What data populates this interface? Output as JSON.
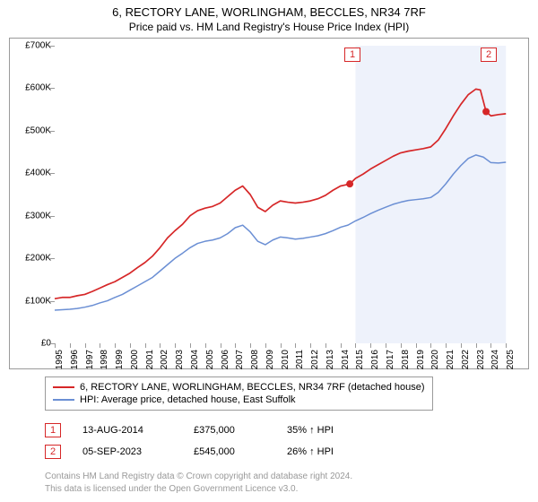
{
  "title_line1": "6, RECTORY LANE, WORLINGHAM, BECCLES, NR34 7RF",
  "title_line2": "Price paid vs. HM Land Registry's House Price Index (HPI)",
  "chart": {
    "type": "line",
    "background_color": "#ffffff",
    "plot_border_color": "#9a9a9a",
    "shaded_band": {
      "from_x": 2015,
      "to_x": 2025,
      "fill": "#eef2fb"
    },
    "y": {
      "min": 0,
      "max": 700000,
      "prefix": "£",
      "suffix": "K",
      "ticks": [
        0,
        100000,
        200000,
        300000,
        400000,
        500000,
        600000,
        700000
      ],
      "tick_labels": [
        "£0",
        "£100K",
        "£200K",
        "£300K",
        "£400K",
        "£500K",
        "£600K",
        "£700K"
      ],
      "label_fontsize": 10,
      "label_color": "#000000"
    },
    "x": {
      "min": 1995,
      "max": 2026,
      "ticks": [
        1995,
        1996,
        1997,
        1998,
        1999,
        2000,
        2001,
        2002,
        2003,
        2004,
        2005,
        2006,
        2007,
        2008,
        2009,
        2010,
        2011,
        2012,
        2013,
        2014,
        2015,
        2016,
        2017,
        2018,
        2019,
        2020,
        2021,
        2022,
        2023,
        2024,
        2025
      ],
      "label_fontsize": 10,
      "label_color": "#000000",
      "rotation_deg": -90
    },
    "series": [
      {
        "name": "price_paid",
        "label": "6, RECTORY LANE, WORLINGHAM, BECCLES, NR34 7RF (detached house)",
        "color": "#d62728",
        "line_width": 1.7,
        "data": [
          [
            1995,
            105000
          ],
          [
            1995.5,
            108000
          ],
          [
            1996,
            108000
          ],
          [
            1996.5,
            112000
          ],
          [
            1997,
            115000
          ],
          [
            1997.5,
            122000
          ],
          [
            1998,
            130000
          ],
          [
            1998.5,
            138000
          ],
          [
            1999,
            145000
          ],
          [
            1999.5,
            155000
          ],
          [
            2000,
            165000
          ],
          [
            2000.5,
            178000
          ],
          [
            2001,
            190000
          ],
          [
            2001.5,
            205000
          ],
          [
            2002,
            225000
          ],
          [
            2002.5,
            248000
          ],
          [
            2003,
            265000
          ],
          [
            2003.5,
            280000
          ],
          [
            2004,
            300000
          ],
          [
            2004.5,
            312000
          ],
          [
            2005,
            318000
          ],
          [
            2005.5,
            322000
          ],
          [
            2006,
            330000
          ],
          [
            2006.5,
            345000
          ],
          [
            2007,
            360000
          ],
          [
            2007.5,
            370000
          ],
          [
            2008,
            350000
          ],
          [
            2008.5,
            320000
          ],
          [
            2009,
            310000
          ],
          [
            2009.5,
            325000
          ],
          [
            2010,
            335000
          ],
          [
            2010.5,
            332000
          ],
          [
            2011,
            330000
          ],
          [
            2011.5,
            332000
          ],
          [
            2012,
            335000
          ],
          [
            2012.5,
            340000
          ],
          [
            2013,
            348000
          ],
          [
            2013.5,
            360000
          ],
          [
            2014,
            370000
          ],
          [
            2014.62,
            375000
          ],
          [
            2015,
            388000
          ],
          [
            2015.5,
            398000
          ],
          [
            2016,
            410000
          ],
          [
            2016.5,
            420000
          ],
          [
            2017,
            430000
          ],
          [
            2017.5,
            440000
          ],
          [
            2018,
            448000
          ],
          [
            2018.5,
            452000
          ],
          [
            2019,
            455000
          ],
          [
            2019.5,
            458000
          ],
          [
            2020,
            462000
          ],
          [
            2020.5,
            478000
          ],
          [
            2021,
            505000
          ],
          [
            2021.5,
            535000
          ],
          [
            2022,
            562000
          ],
          [
            2022.5,
            585000
          ],
          [
            2023,
            598000
          ],
          [
            2023.3,
            596000
          ],
          [
            2023.68,
            545000
          ],
          [
            2024,
            535000
          ],
          [
            2024.5,
            538000
          ],
          [
            2025,
            540000
          ]
        ]
      },
      {
        "name": "hpi",
        "label": "HPI: Average price, detached house, East Suffolk",
        "color": "#6b8fd4",
        "line_width": 1.5,
        "data": [
          [
            1995,
            78000
          ],
          [
            1995.5,
            79000
          ],
          [
            1996,
            80000
          ],
          [
            1996.5,
            82000
          ],
          [
            1997,
            85000
          ],
          [
            1997.5,
            89000
          ],
          [
            1998,
            95000
          ],
          [
            1998.5,
            100000
          ],
          [
            1999,
            108000
          ],
          [
            1999.5,
            115000
          ],
          [
            2000,
            125000
          ],
          [
            2000.5,
            135000
          ],
          [
            2001,
            145000
          ],
          [
            2001.5,
            155000
          ],
          [
            2002,
            170000
          ],
          [
            2002.5,
            185000
          ],
          [
            2003,
            200000
          ],
          [
            2003.5,
            212000
          ],
          [
            2004,
            225000
          ],
          [
            2004.5,
            235000
          ],
          [
            2005,
            240000
          ],
          [
            2005.5,
            243000
          ],
          [
            2006,
            248000
          ],
          [
            2006.5,
            258000
          ],
          [
            2007,
            272000
          ],
          [
            2007.5,
            278000
          ],
          [
            2008,
            262000
          ],
          [
            2008.5,
            240000
          ],
          [
            2009,
            232000
          ],
          [
            2009.5,
            243000
          ],
          [
            2010,
            250000
          ],
          [
            2010.5,
            248000
          ],
          [
            2011,
            245000
          ],
          [
            2011.5,
            247000
          ],
          [
            2012,
            250000
          ],
          [
            2012.5,
            253000
          ],
          [
            2013,
            258000
          ],
          [
            2013.5,
            265000
          ],
          [
            2014,
            273000
          ],
          [
            2014.5,
            278000
          ],
          [
            2015,
            288000
          ],
          [
            2015.5,
            296000
          ],
          [
            2016,
            305000
          ],
          [
            2016.5,
            313000
          ],
          [
            2017,
            320000
          ],
          [
            2017.5,
            327000
          ],
          [
            2018,
            332000
          ],
          [
            2018.5,
            336000
          ],
          [
            2019,
            338000
          ],
          [
            2019.5,
            340000
          ],
          [
            2020,
            343000
          ],
          [
            2020.5,
            355000
          ],
          [
            2021,
            375000
          ],
          [
            2021.5,
            398000
          ],
          [
            2022,
            418000
          ],
          [
            2022.5,
            435000
          ],
          [
            2023,
            443000
          ],
          [
            2023.5,
            438000
          ],
          [
            2024,
            425000
          ],
          [
            2024.5,
            424000
          ],
          [
            2025,
            426000
          ]
        ]
      }
    ],
    "event_markers": [
      {
        "n": "1",
        "x": 2014.62,
        "y": 375000,
        "border_color": "#d62728",
        "text_color": "#d62728",
        "dot_color": "#d62728",
        "box_y_top": 2
      },
      {
        "n": "2",
        "x": 2023.68,
        "y": 545000,
        "border_color": "#d62728",
        "text_color": "#d62728",
        "dot_color": "#d62728",
        "box_y_top": 2
      }
    ]
  },
  "legend": {
    "border_color": "#9a9a9a",
    "items": [
      {
        "line_color": "#d62728",
        "label": "6, RECTORY LANE, WORLINGHAM, BECCLES, NR34 7RF (detached house)"
      },
      {
        "line_color": "#6b8fd4",
        "label": "HPI: Average price, detached house, East Suffolk"
      }
    ]
  },
  "event_table": {
    "rows": [
      {
        "n": "1",
        "border_color": "#d62728",
        "date": "13-AUG-2014",
        "price": "£375,000",
        "delta": "35% ↑ HPI"
      },
      {
        "n": "2",
        "border_color": "#d62728",
        "date": "05-SEP-2023",
        "price": "£545,000",
        "delta": "26% ↑ HPI"
      }
    ]
  },
  "footer": {
    "line1": "Contains HM Land Registry data © Crown copyright and database right 2024.",
    "line2": "This data is licensed under the Open Government Licence v3.0."
  }
}
